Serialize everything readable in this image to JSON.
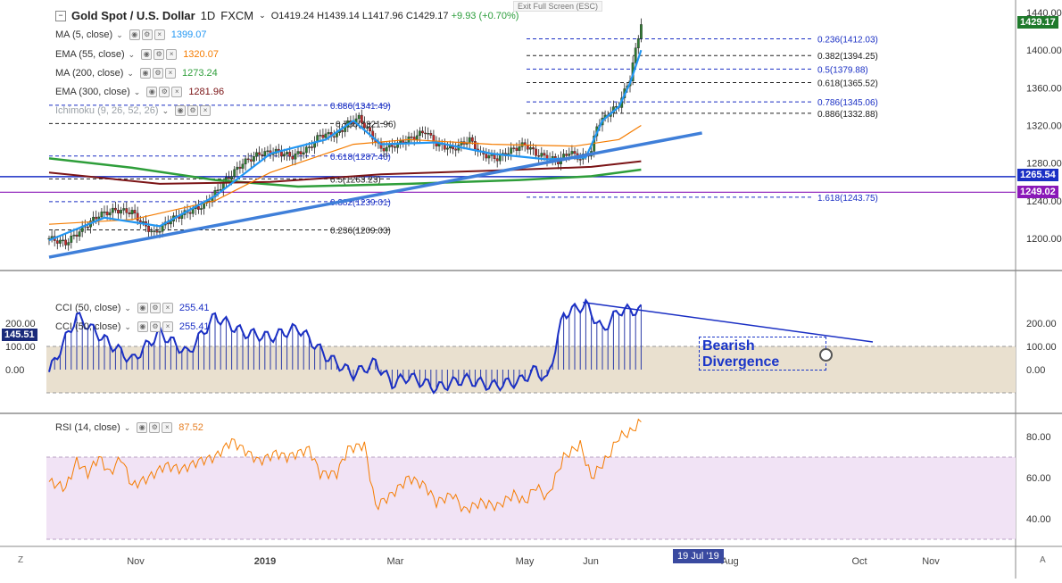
{
  "header": {
    "title": "Gold Spot / U.S. Dollar",
    "timeframe": "1D",
    "source": "FXCM",
    "open": "O1419.24",
    "high": "H1439.14",
    "low": "L1417.96",
    "close": "C1429.17",
    "change": "+9.93 (+0.70%)",
    "exit_fullscreen": "Exit Full Screen (ESC)"
  },
  "indicators": [
    {
      "name": "MA (5, close)",
      "value": "1399.07",
      "color": "#2196f3"
    },
    {
      "name": "EMA (55, close)",
      "value": "1320.07",
      "color": "#f57c00"
    },
    {
      "name": "MA (200, close)",
      "value": "1273.24",
      "color": "#2e9e3a"
    },
    {
      "name": "EMA (300, close)",
      "value": "1281.96",
      "color": "#7b1416"
    },
    {
      "name": "Ichimoku (9, 26, 52, 26)",
      "value": "",
      "color": "#9aa0a6"
    }
  ],
  "cci_legend": [
    {
      "name": "CCI (50, close)",
      "value": "255.41"
    },
    {
      "name": "CCI (50, close)",
      "value": "255.41"
    }
  ],
  "rsi_legend": {
    "name": "RSI (14, close)",
    "value": "87.52"
  },
  "price_badges": {
    "last": {
      "label": "1429.17",
      "color": "#1f7a2c"
    },
    "blue": {
      "label": "1265.54",
      "color": "#1a2fc4"
    },
    "purple": {
      "label": "1249.02",
      "color": "#8a18b8"
    },
    "cci": {
      "label": "145.51",
      "color": "#1a2a7a"
    }
  },
  "annotation": {
    "text_line1": "Bearish",
    "text_line2": "Divergence"
  },
  "date_tag": "19 Jul '19",
  "nav": {
    "left": "Z",
    "right": "A"
  },
  "chart_data": {
    "type": "candlestick",
    "price_axis": {
      "ticks": [
        "1440.00",
        "1400.00",
        "1360.00",
        "1320.00",
        "1280.00",
        "1240.00",
        "1200.00"
      ],
      "values": [
        1440,
        1400,
        1360,
        1320,
        1280,
        1240,
        1200
      ]
    },
    "cci_axis": {
      "ticks": [
        "200.00",
        "100.00",
        "0.00"
      ],
      "right_ticks": [
        "200.00",
        "100.00",
        "0.00"
      ]
    },
    "rsi_axis": {
      "ticks": [
        "80.00",
        "60.00",
        "40.00"
      ],
      "band": [
        30,
        70
      ]
    },
    "time_axis": [
      "Nov",
      "2019",
      "Mar",
      "May",
      "Jun",
      "Aug",
      "Oct",
      "Nov"
    ],
    "fib_right": [
      {
        "label": "0.236(1412.03)",
        "price": 1412.03
      },
      {
        "label": "0.382(1394.25)",
        "price": 1394.25
      },
      {
        "label": "0.5(1379.88)",
        "price": 1379.88
      },
      {
        "label": "0.618(1365.52)",
        "price": 1365.52
      },
      {
        "label": "0.786(1345.06)",
        "price": 1345.06
      },
      {
        "label": "0.886(1332.88)",
        "price": 1332.88
      },
      {
        "label": "1.618(1243.75)",
        "price": 1243.75
      }
    ],
    "fib_left": [
      {
        "label": "0.886(1341.49)",
        "price": 1341.49
      },
      {
        "label": "0.786(1321.96)",
        "price": 1321.96
      },
      {
        "label": "0.618(1287.46)",
        "price": 1287.46
      },
      {
        "label": "0.5(1263.23)",
        "price": 1263.23
      },
      {
        "label": "0.382(1239.01)",
        "price": 1239.01
      },
      {
        "label": "0.236(1209.03)",
        "price": 1209.03
      }
    ],
    "close_path": [
      [
        0,
        1200
      ],
      [
        6,
        1195
      ],
      [
        12,
        1210
      ],
      [
        18,
        1225
      ],
      [
        24,
        1230
      ],
      [
        30,
        1228
      ],
      [
        34,
        1215
      ],
      [
        38,
        1205
      ],
      [
        44,
        1220
      ],
      [
        50,
        1228
      ],
      [
        56,
        1235
      ],
      [
        60,
        1248
      ],
      [
        64,
        1262
      ],
      [
        70,
        1280
      ],
      [
        76,
        1290
      ],
      [
        82,
        1292
      ],
      [
        88,
        1287
      ],
      [
        94,
        1296
      ],
      [
        98,
        1310
      ],
      [
        104,
        1310
      ],
      [
        108,
        1322
      ],
      [
        112,
        1328
      ],
      [
        116,
        1312
      ],
      [
        120,
        1295
      ],
      [
        126,
        1300
      ],
      [
        132,
        1308
      ],
      [
        136,
        1314
      ],
      [
        140,
        1300
      ],
      [
        146,
        1295
      ],
      [
        152,
        1305
      ],
      [
        156,
        1290
      ],
      [
        162,
        1285
      ],
      [
        168,
        1295
      ],
      [
        172,
        1300
      ],
      [
        176,
        1290
      ],
      [
        180,
        1286
      ],
      [
        184,
        1282
      ],
      [
        188,
        1292
      ],
      [
        192,
        1285
      ],
      [
        196,
        1292
      ],
      [
        198,
        1320
      ],
      [
        202,
        1332
      ],
      [
        206,
        1342
      ],
      [
        210,
        1370
      ],
      [
        212,
        1400
      ],
      [
        214,
        1429
      ]
    ],
    "ma5_path": [
      [
        0,
        1198
      ],
      [
        20,
        1222
      ],
      [
        40,
        1213
      ],
      [
        60,
        1245
      ],
      [
        80,
        1290
      ],
      [
        100,
        1305
      ],
      [
        110,
        1325
      ],
      [
        120,
        1300
      ],
      [
        140,
        1302
      ],
      [
        160,
        1290
      ],
      [
        180,
        1284
      ],
      [
        194,
        1286
      ],
      [
        200,
        1325
      ],
      [
        206,
        1340
      ],
      [
        210,
        1365
      ],
      [
        214,
        1400
      ]
    ],
    "ema55_path": [
      [
        0,
        1215
      ],
      [
        30,
        1220
      ],
      [
        60,
        1240
      ],
      [
        80,
        1270
      ],
      [
        110,
        1300
      ],
      [
        130,
        1305
      ],
      [
        160,
        1300
      ],
      [
        190,
        1298
      ],
      [
        206,
        1305
      ],
      [
        214,
        1320
      ]
    ],
    "ma200_path": [
      [
        0,
        1285
      ],
      [
        30,
        1275
      ],
      [
        60,
        1262
      ],
      [
        90,
        1255
      ],
      [
        130,
        1258
      ],
      [
        170,
        1262
      ],
      [
        196,
        1266
      ],
      [
        214,
        1273
      ]
    ],
    "ema300_path": [
      [
        0,
        1270
      ],
      [
        40,
        1258
      ],
      [
        80,
        1260
      ],
      [
        120,
        1268
      ],
      [
        160,
        1272
      ],
      [
        196,
        1276
      ],
      [
        214,
        1282
      ]
    ],
    "trendline": {
      "start": [
        0,
        1180
      ],
      "end": [
        236,
        1312
      ]
    },
    "cci_path": [
      [
        0,
        -10
      ],
      [
        10,
        230
      ],
      [
        20,
        130
      ],
      [
        30,
        40
      ],
      [
        40,
        160
      ],
      [
        50,
        70
      ],
      [
        60,
        230
      ],
      [
        70,
        160
      ],
      [
        80,
        140
      ],
      [
        90,
        180
      ],
      [
        100,
        60
      ],
      [
        110,
        -20
      ],
      [
        118,
        30
      ],
      [
        124,
        -60
      ],
      [
        130,
        -30
      ],
      [
        140,
        -80
      ],
      [
        150,
        -40
      ],
      [
        160,
        -70
      ],
      [
        170,
        -50
      ],
      [
        176,
        0
      ],
      [
        180,
        -50
      ],
      [
        186,
        240
      ],
      [
        194,
        280
      ],
      [
        200,
        170
      ],
      [
        206,
        255
      ]
    ],
    "rsi_path": [
      [
        0,
        58
      ],
      [
        6,
        55
      ],
      [
        10,
        68
      ],
      [
        14,
        62
      ],
      [
        18,
        70
      ],
      [
        22,
        62
      ],
      [
        26,
        70
      ],
      [
        30,
        56
      ],
      [
        36,
        60
      ],
      [
        42,
        66
      ],
      [
        48,
        64
      ],
      [
        54,
        68
      ],
      [
        60,
        70
      ],
      [
        66,
        78
      ],
      [
        72,
        72
      ],
      [
        76,
        68
      ],
      [
        82,
        72
      ],
      [
        86,
        70
      ],
      [
        94,
        74
      ],
      [
        98,
        62
      ],
      [
        104,
        62
      ],
      [
        108,
        74
      ],
      [
        114,
        76
      ],
      [
        118,
        46
      ],
      [
        124,
        52
      ],
      [
        130,
        60
      ],
      [
        136,
        56
      ],
      [
        140,
        48
      ],
      [
        146,
        52
      ],
      [
        150,
        44
      ],
      [
        156,
        48
      ],
      [
        162,
        46
      ],
      [
        168,
        52
      ],
      [
        172,
        48
      ],
      [
        176,
        56
      ],
      [
        180,
        50
      ],
      [
        186,
        70
      ],
      [
        192,
        76
      ],
      [
        196,
        60
      ],
      [
        202,
        70
      ],
      [
        206,
        80
      ],
      [
        210,
        82
      ],
      [
        214,
        87.5
      ]
    ],
    "cci_divergence_line": {
      "start": [
        193,
        290
      ],
      "end": [
        250,
        105
      ]
    }
  }
}
